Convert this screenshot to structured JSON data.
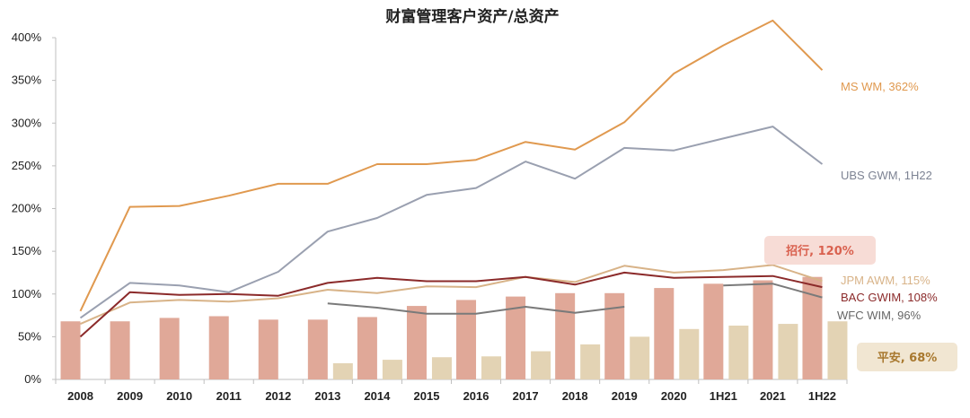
{
  "chart_data": {
    "type": "bar+line",
    "title": "财富管理客户资产/总资产",
    "categories": [
      "2008",
      "2009",
      "2010",
      "2011",
      "2012",
      "2013",
      "2014",
      "2015",
      "2016",
      "2017",
      "2018",
      "2019",
      "2020",
      "1H21",
      "2021",
      "1H22"
    ],
    "ylim": [
      0,
      400
    ],
    "yticks": [
      "0%",
      "50%",
      "100%",
      "150%",
      "200%",
      "250%",
      "300%",
      "350%",
      "400%"
    ],
    "bars": [
      {
        "key": "cmb",
        "color": "#e0a898",
        "values": [
          68,
          68,
          72,
          74,
          70,
          70,
          73,
          86,
          93,
          97,
          101,
          101,
          107,
          112,
          116,
          120
        ]
      },
      {
        "key": "pingan",
        "color": "#e3d3b4",
        "values": [
          null,
          null,
          null,
          null,
          null,
          19,
          23,
          26,
          27,
          33,
          41,
          50,
          59,
          63,
          65,
          68
        ]
      }
    ],
    "lines": [
      {
        "key": "ms",
        "color": "#e0994f",
        "values": [
          80,
          202,
          203,
          215,
          229,
          229,
          252,
          252,
          257,
          278,
          269,
          301,
          358,
          391,
          420,
          362
        ]
      },
      {
        "key": "ubs",
        "color": "#9aa0b0",
        "values": [
          72,
          113,
          110,
          102,
          126,
          173,
          189,
          216,
          224,
          255,
          235,
          271,
          268,
          282,
          296,
          252
        ]
      },
      {
        "key": "jpm",
        "color": "#d8b388",
        "values": [
          65,
          90,
          93,
          91,
          95,
          105,
          101,
          109,
          108,
          120,
          114,
          133,
          125,
          128,
          134,
          115
        ]
      },
      {
        "key": "bac",
        "color": "#8b2a2a",
        "values": [
          50,
          102,
          99,
          100,
          98,
          113,
          119,
          115,
          115,
          120,
          111,
          125,
          119,
          120,
          121,
          108
        ]
      },
      {
        "key": "wfc",
        "color": "#7a7a7a",
        "values": [
          null,
          null,
          null,
          null,
          null,
          89,
          84,
          77,
          77,
          85,
          78,
          85,
          null,
          110,
          112,
          96
        ]
      }
    ],
    "labels": {
      "ms": "MS WM, 362%",
      "ubs": "UBS GWM, 1H22",
      "jpm": "JPM AWM, 115%",
      "bac": "BAC GWIM, 108%",
      "wfc": "WFC WIM, 96%",
      "cmb": "招行, 120%",
      "pingan": "平安, 68%"
    },
    "label_colors": {
      "ms": "#e0994f",
      "ubs": "#7d8393",
      "jpm": "#d8b388",
      "bac": "#8b2a2a",
      "wfc": "#666666",
      "cmb": "#d9614f",
      "pingan": "#a8782e"
    },
    "badge_fills": {
      "cmb": "#f7dcd6",
      "pingan": "#f1e6d2"
    }
  }
}
